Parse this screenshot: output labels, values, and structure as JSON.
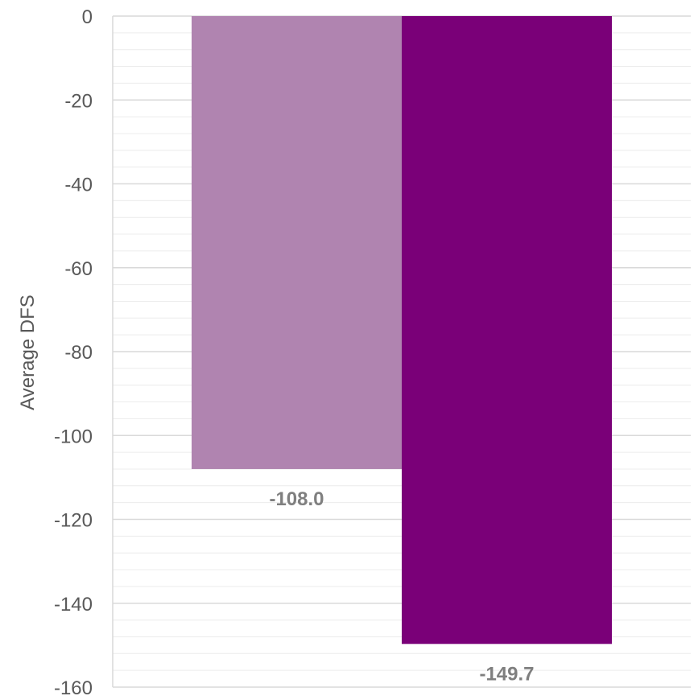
{
  "chart_data": {
    "type": "bar",
    "categories": [
      "",
      ""
    ],
    "values": [
      -108.0,
      -149.7
    ],
    "data_labels": [
      "-108.0",
      "-149.7"
    ],
    "colors": [
      "#b084b0",
      "#7a0078"
    ],
    "title": "",
    "xlabel": "",
    "ylabel": "Average DFS",
    "ylim": [
      -160,
      0
    ],
    "yticks": [
      0,
      -20,
      -40,
      -60,
      -80,
      -100,
      -120,
      -140,
      -160
    ],
    "ytick_labels": [
      "0",
      "-20",
      "-40",
      "-60",
      "-80",
      "-100",
      "-120",
      "-140",
      "-160"
    ],
    "major_gridline_color": "#d9d9d9",
    "minor_gridline_color": "#ececec",
    "minor_step": 4,
    "grid": true,
    "legend": "none"
  }
}
